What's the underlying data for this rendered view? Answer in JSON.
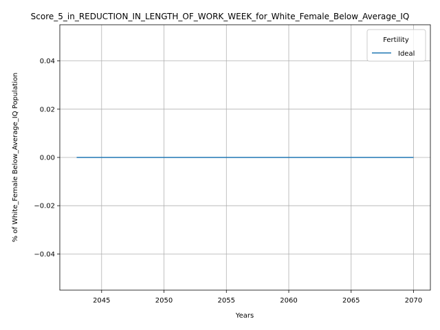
{
  "chart_data": {
    "type": "line",
    "title": "Score_5_in_REDUCTION_IN_LENGTH_OF_WORK_WEEK_for_White_Female_Below_Average_IQ",
    "xlabel": "Years",
    "ylabel": "% of White_Female Below_Average_IQ Population",
    "xlim": [
      2041.65,
      2071.35
    ],
    "ylim": [
      -0.055,
      0.055
    ],
    "x_ticks": [
      2045,
      2050,
      2055,
      2060,
      2065,
      2070
    ],
    "y_ticks": [
      -0.04,
      -0.02,
      0.0,
      0.02,
      0.04
    ],
    "y_tick_labels": [
      "−0.04",
      "−0.02",
      "0.00",
      "0.02",
      "0.04"
    ],
    "grid": true,
    "legend": {
      "title": "Fertility",
      "placement": "top-right"
    },
    "series": [
      {
        "name": "Ideal",
        "color": "#1f77b4",
        "x": [
          2043,
          2070
        ],
        "y": [
          0,
          0
        ]
      }
    ]
  }
}
